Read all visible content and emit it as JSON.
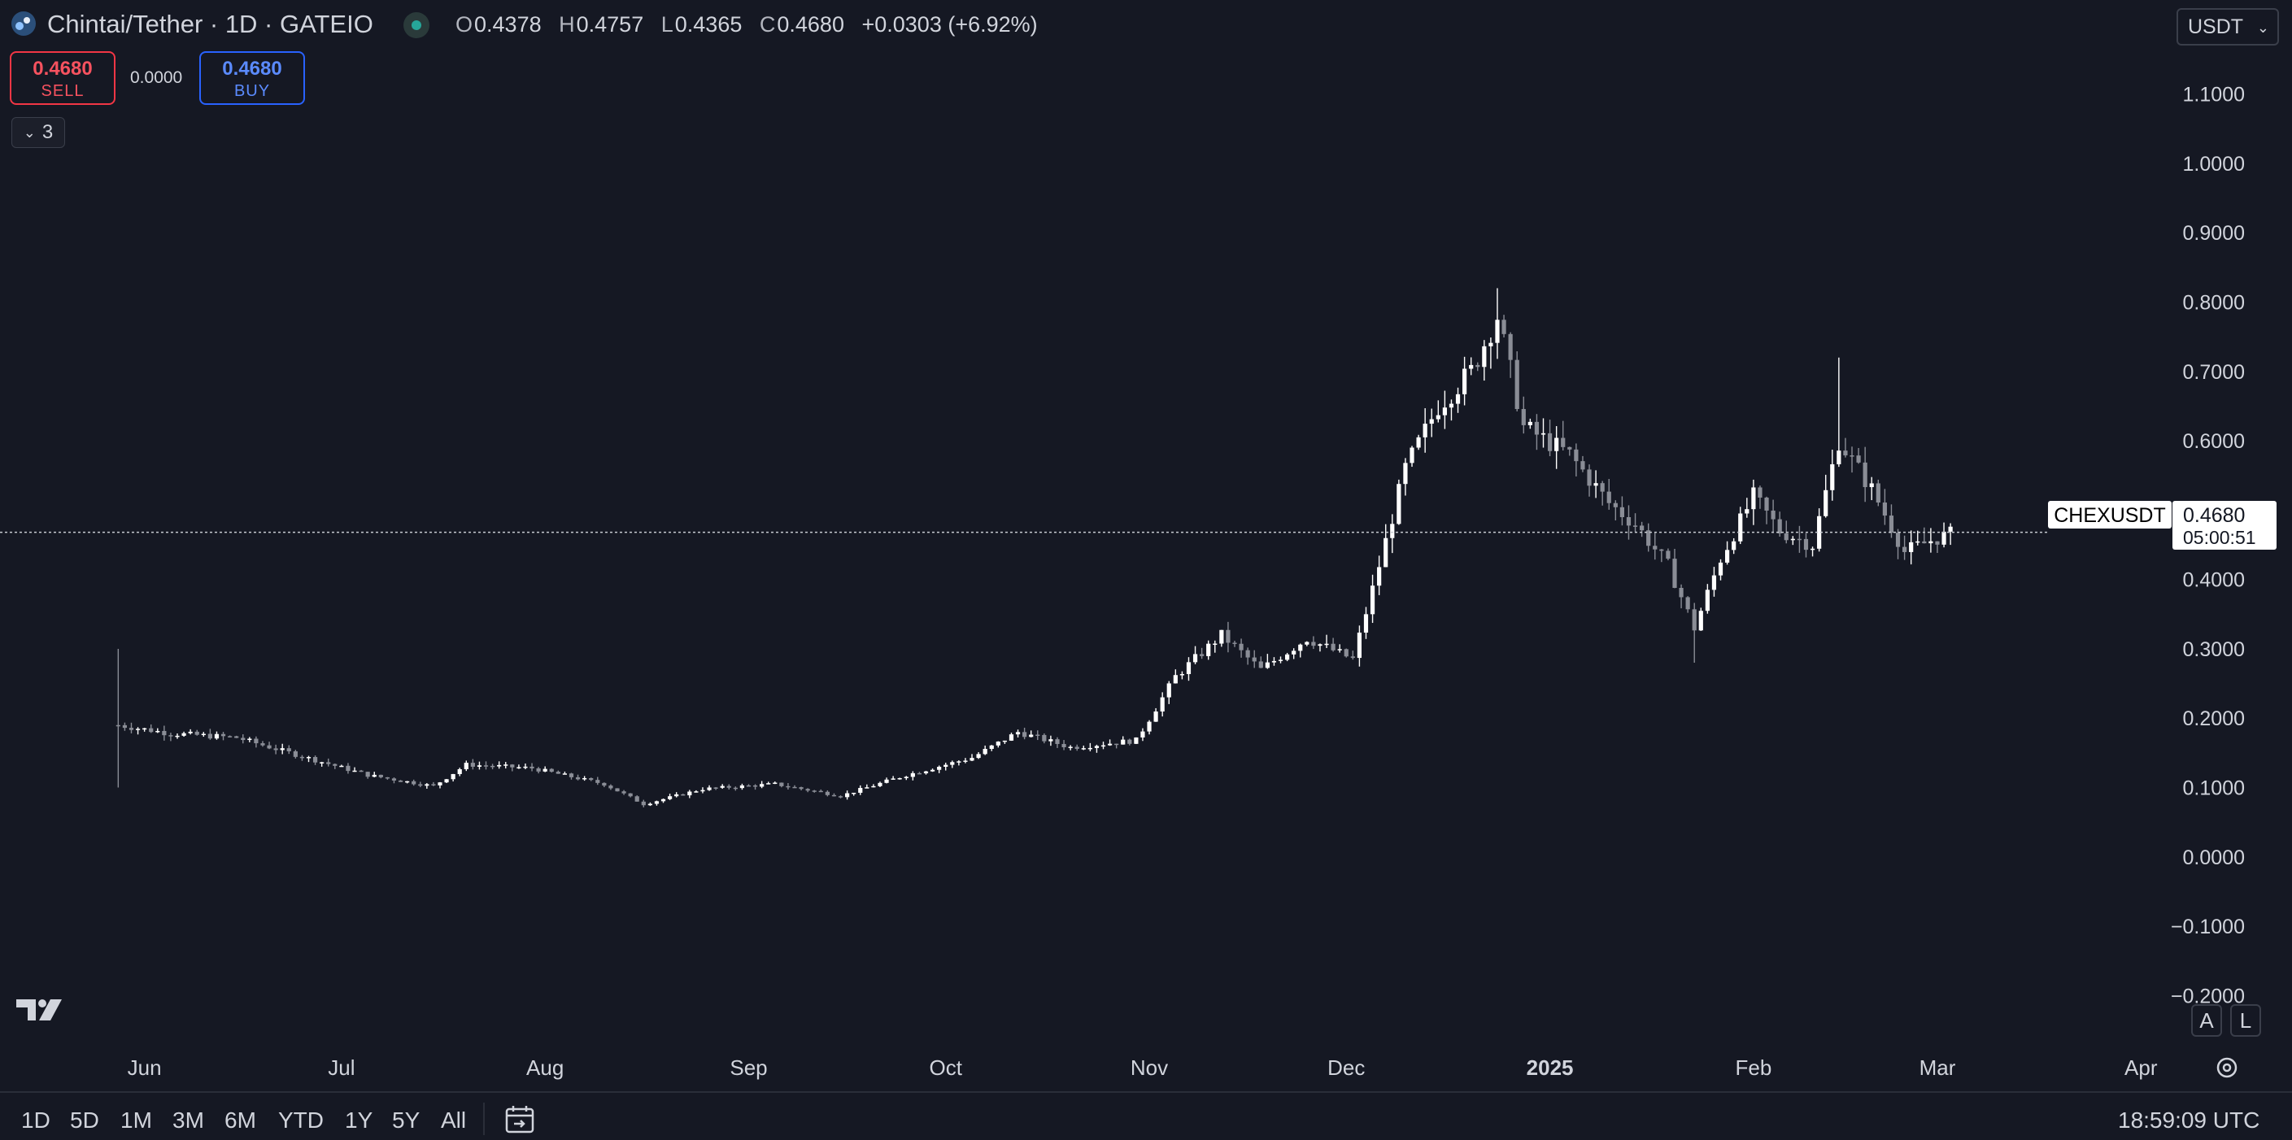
{
  "header": {
    "symbol_title": "Chintai/Tether · 1D · GATEIO",
    "ohlc": {
      "o_label": "O",
      "o_value": "0.4378",
      "h_label": "H",
      "h_value": "0.4757",
      "l_label": "L",
      "l_value": "0.4365",
      "c_label": "C",
      "c_value": "0.4680",
      "change": "+0.0303 (+6.92%)"
    },
    "currency": "USDT"
  },
  "trade": {
    "sell_price": "0.4680",
    "sell_label": "SELL",
    "spread": "0.0000",
    "buy_price": "0.4680",
    "buy_label": "BUY"
  },
  "indicators_toggle": {
    "count": "3"
  },
  "price_label": {
    "symbol": "CHEXUSDT",
    "price": "0.4680",
    "countdown": "05:00:51"
  },
  "scale_buttons": {
    "auto": "A",
    "log": "L"
  },
  "time_ranges": [
    "1D",
    "5D",
    "1M",
    "3M",
    "6M",
    "YTD",
    "1Y",
    "5Y",
    "All"
  ],
  "clock": "18:59:09 UTC",
  "colors": {
    "background": "#151823",
    "candle": "#ffffff",
    "candle_down": "#8a8d96",
    "sell": "#f23645",
    "buy": "#2962ff",
    "grid_text": "#d1d4dc"
  },
  "chart_data": {
    "type": "candlestick",
    "title": "Chintai/Tether · 1D · GATEIO",
    "y_ticks": [
      "1.1000",
      "1.0000",
      "0.9000",
      "0.8000",
      "0.7000",
      "0.6000",
      "0.5000",
      "0.4000",
      "0.3000",
      "0.2000",
      "0.1000",
      "0.0000",
      "−0.1000",
      "−0.2000"
    ],
    "y_tick_values": [
      1.1,
      1.0,
      0.9,
      0.8,
      0.7,
      0.6,
      0.5,
      0.4,
      0.3,
      0.2,
      0.1,
      0.0,
      -0.1,
      -0.2
    ],
    "ylim": [
      -0.23,
      1.13
    ],
    "x_ticks": [
      {
        "label": "Jun",
        "date": "2024-06-01"
      },
      {
        "label": "Jul",
        "date": "2024-07-01"
      },
      {
        "label": "Aug",
        "date": "2024-08-01"
      },
      {
        "label": "Sep",
        "date": "2024-09-01"
      },
      {
        "label": "Oct",
        "date": "2024-10-01"
      },
      {
        "label": "Nov",
        "date": "2024-11-01"
      },
      {
        "label": "Dec",
        "date": "2024-12-01"
      },
      {
        "label": "2025",
        "date": "2025-01-01",
        "bold": true
      },
      {
        "label": "Feb",
        "date": "2025-02-01"
      },
      {
        "label": "Mar",
        "date": "2025-03-01"
      },
      {
        "label": "Apr",
        "date": "2025-04-01"
      }
    ],
    "xlim": [
      "2024-05-10",
      "2025-04-24"
    ],
    "last_price": 0.468,
    "closes": [
      {
        "date": "2024-05-28",
        "close": 0.19,
        "high": 0.3,
        "low": 0.1
      },
      {
        "date": "2024-06-05",
        "close": 0.178
      },
      {
        "date": "2024-06-15",
        "close": 0.172
      },
      {
        "date": "2024-06-25",
        "close": 0.145
      },
      {
        "date": "2024-07-05",
        "close": 0.118
      },
      {
        "date": "2024-07-15",
        "close": 0.102
      },
      {
        "date": "2024-07-20",
        "close": 0.133
      },
      {
        "date": "2024-07-30",
        "close": 0.128
      },
      {
        "date": "2024-08-10",
        "close": 0.105
      },
      {
        "date": "2024-08-16",
        "close": 0.076
      },
      {
        "date": "2024-08-25",
        "close": 0.098
      },
      {
        "date": "2024-09-05",
        "close": 0.105
      },
      {
        "date": "2024-09-15",
        "close": 0.088
      },
      {
        "date": "2024-09-25",
        "close": 0.118
      },
      {
        "date": "2024-10-05",
        "close": 0.143
      },
      {
        "date": "2024-10-12",
        "close": 0.18
      },
      {
        "date": "2024-10-20",
        "close": 0.158
      },
      {
        "date": "2024-10-30",
        "close": 0.168
      },
      {
        "date": "2024-11-05",
        "close": 0.26
      },
      {
        "date": "2024-11-12",
        "close": 0.32
      },
      {
        "date": "2024-11-18",
        "close": 0.27
      },
      {
        "date": "2024-11-25",
        "close": 0.315
      },
      {
        "date": "2024-12-02",
        "close": 0.285
      },
      {
        "date": "2024-12-06",
        "close": 0.42
      },
      {
        "date": "2024-12-10",
        "close": 0.56
      },
      {
        "date": "2024-12-15",
        "close": 0.65
      },
      {
        "date": "2024-12-20",
        "close": 0.7
      },
      {
        "date": "2024-12-24",
        "close": 0.78,
        "high": 0.82
      },
      {
        "date": "2024-12-28",
        "close": 0.62
      },
      {
        "date": "2025-01-04",
        "close": 0.58
      },
      {
        "date": "2025-01-10",
        "close": 0.51
      },
      {
        "date": "2025-01-14",
        "close": 0.48
      },
      {
        "date": "2025-01-19",
        "close": 0.42
      },
      {
        "date": "2025-01-23",
        "close": 0.33,
        "low": 0.28
      },
      {
        "date": "2025-01-27",
        "close": 0.43
      },
      {
        "date": "2025-02-01",
        "close": 0.52
      },
      {
        "date": "2025-02-05",
        "close": 0.47
      },
      {
        "date": "2025-02-10",
        "close": 0.45
      },
      {
        "date": "2025-02-14",
        "close": 0.6,
        "high": 0.72
      },
      {
        "date": "2025-02-19",
        "close": 0.53
      },
      {
        "date": "2025-02-24",
        "close": 0.44
      },
      {
        "date": "2025-03-01",
        "close": 0.46
      },
      {
        "date": "2025-03-04",
        "close": 0.468
      }
    ],
    "grid": false
  }
}
